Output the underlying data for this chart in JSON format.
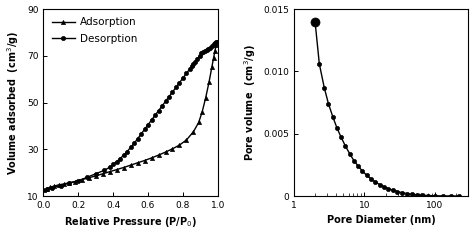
{
  "adsorption_x": [
    0.005,
    0.02,
    0.04,
    0.06,
    0.09,
    0.12,
    0.15,
    0.18,
    0.22,
    0.26,
    0.3,
    0.34,
    0.38,
    0.42,
    0.46,
    0.5,
    0.54,
    0.58,
    0.62,
    0.66,
    0.7,
    0.74,
    0.78,
    0.82,
    0.86,
    0.89,
    0.91,
    0.93,
    0.95,
    0.965,
    0.975,
    0.983,
    0.99,
    0.995
  ],
  "adsorption_y": [
    12.5,
    13.2,
    13.8,
    14.2,
    14.8,
    15.2,
    15.7,
    16.2,
    17.0,
    17.8,
    18.6,
    19.5,
    20.4,
    21.3,
    22.2,
    23.2,
    24.2,
    25.2,
    26.3,
    27.5,
    28.8,
    30.2,
    31.8,
    34.0,
    37.5,
    41.5,
    46.0,
    52.0,
    59.0,
    65.0,
    69.0,
    72.0,
    74.5,
    76.0
  ],
  "desorption_x": [
    0.995,
    0.99,
    0.983,
    0.975,
    0.965,
    0.955,
    0.945,
    0.935,
    0.925,
    0.915,
    0.905,
    0.895,
    0.88,
    0.87,
    0.86,
    0.85,
    0.84,
    0.82,
    0.8,
    0.78,
    0.76,
    0.74,
    0.72,
    0.7,
    0.68,
    0.66,
    0.64,
    0.62,
    0.6,
    0.58,
    0.56,
    0.54,
    0.52,
    0.5,
    0.48,
    0.46,
    0.44,
    0.42,
    0.4,
    0.38,
    0.35,
    0.3,
    0.25,
    0.2,
    0.15,
    0.1,
    0.05,
    0.02
  ],
  "desorption_y": [
    76.0,
    76.0,
    75.5,
    75.0,
    74.0,
    73.5,
    73.0,
    72.5,
    72.0,
    71.5,
    71.0,
    70.0,
    68.5,
    67.5,
    66.5,
    65.5,
    64.5,
    62.5,
    60.5,
    58.5,
    56.5,
    54.5,
    52.5,
    50.5,
    48.5,
    46.5,
    44.5,
    42.5,
    40.5,
    38.5,
    36.5,
    34.5,
    32.5,
    30.8,
    29.0,
    27.5,
    26.0,
    24.7,
    23.5,
    22.3,
    21.0,
    19.5,
    18.0,
    16.5,
    15.5,
    14.5,
    13.5,
    12.8
  ],
  "pore_diameter": [
    2.0,
    2.3,
    2.7,
    3.1,
    3.6,
    4.1,
    4.7,
    5.4,
    6.2,
    7.1,
    8.2,
    9.4,
    10.8,
    12.4,
    14.3,
    16.5,
    19.0,
    22.0,
    25.5,
    29.5,
    34.0,
    40.0,
    47.0,
    55.0,
    65.0,
    80.0,
    100.0,
    130.0,
    170.0,
    220.0
  ],
  "pore_volume": [
    0.014,
    0.0106,
    0.0087,
    0.0074,
    0.0063,
    0.00545,
    0.0047,
    0.004,
    0.0034,
    0.00285,
    0.0024,
    0.002,
    0.00167,
    0.00138,
    0.00113,
    0.00092,
    0.00074,
    0.00059,
    0.00046,
    0.00036,
    0.00027,
    0.0002,
    0.00014,
    0.0001,
    7e-05,
    4e-05,
    2e-05,
    1e-05,
    5e-06,
    2e-06
  ],
  "bg_color": "#ffffff",
  "line_color": "#000000",
  "xlabel_left": "Relative Pressure (P/P$_0$)",
  "ylabel_left": "Volume adsorbed  (cm$^3$/g)",
  "xlabel_right": "Pore Diameter (nm)",
  "ylabel_right": "Pore volume  (cm$^3$/g)",
  "legend_adsorption": "Adsorption",
  "legend_desorption": "Desorption",
  "ylim_left": [
    10,
    90
  ],
  "xlim_left": [
    0,
    1.0
  ],
  "yticks_left": [
    10,
    30,
    50,
    70,
    90
  ],
  "xticks_left": [
    0,
    0.2,
    0.4,
    0.6,
    0.8,
    1.0
  ],
  "ylim_right": [
    0,
    0.015
  ],
  "yticks_right": [
    0,
    0.005,
    0.01,
    0.015
  ],
  "fontsize_label": 7,
  "fontsize_tick": 6.5,
  "fontsize_legend": 7.5
}
